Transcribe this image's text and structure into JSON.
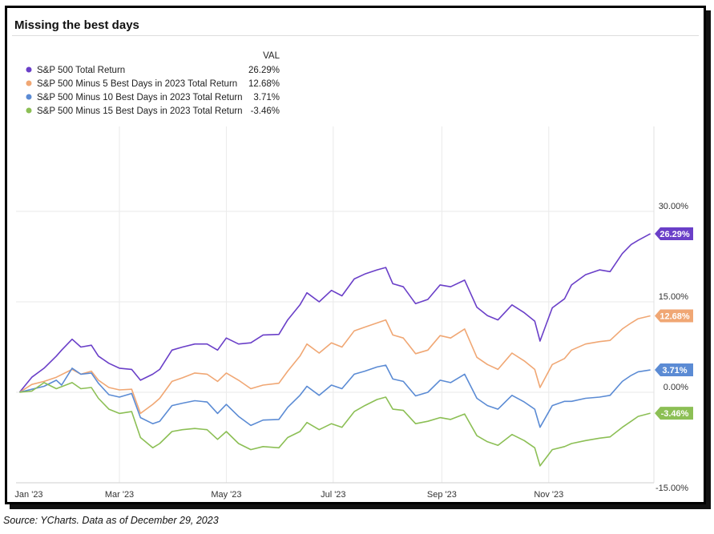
{
  "chart_data": {
    "type": "line",
    "title": "Missing the best days",
    "legend_header": "VAL",
    "legend_position": "top-left",
    "grid": true,
    "x_range": [
      "2023-01-01",
      "2023-12-31"
    ],
    "x_ticks": [
      {
        "date": "2023-01-01",
        "label": "Jan '23"
      },
      {
        "date": "2023-03-01",
        "label": "Mar '23"
      },
      {
        "date": "2023-05-01",
        "label": "May '23"
      },
      {
        "date": "2023-07-01",
        "label": "Jul '23"
      },
      {
        "date": "2023-09-01",
        "label": "Sep '23"
      },
      {
        "date": "2023-11-01",
        "label": "Nov '23"
      }
    ],
    "ylim": [
      -15,
      30
    ],
    "y_ticks": [
      {
        "value": 30,
        "label": "30.00%"
      },
      {
        "value": 15,
        "label": "15.00%"
      },
      {
        "value": 0,
        "label": "0.00%"
      },
      {
        "value": -15,
        "label": "-15.00%"
      }
    ],
    "series": [
      {
        "name": "S&P 500 Total Return",
        "value_label": "26.29%",
        "color": "#6a3fc8",
        "points": [
          [
            "2023-01-03",
            0
          ],
          [
            "2023-01-10",
            2.5
          ],
          [
            "2023-01-17",
            4.0
          ],
          [
            "2023-01-24",
            6.0
          ],
          [
            "2023-01-27",
            7.0
          ],
          [
            "2023-02-02",
            8.8
          ],
          [
            "2023-02-07",
            7.5
          ],
          [
            "2023-02-13",
            7.8
          ],
          [
            "2023-02-17",
            6.0
          ],
          [
            "2023-02-23",
            4.8
          ],
          [
            "2023-03-01",
            4.0
          ],
          [
            "2023-03-08",
            3.8
          ],
          [
            "2023-03-13",
            2.0
          ],
          [
            "2023-03-20",
            3.0
          ],
          [
            "2023-03-24",
            3.8
          ],
          [
            "2023-03-31",
            7.0
          ],
          [
            "2023-04-06",
            7.5
          ],
          [
            "2023-04-13",
            8.0
          ],
          [
            "2023-04-20",
            8.0
          ],
          [
            "2023-04-26",
            7.0
          ],
          [
            "2023-05-01",
            9.0
          ],
          [
            "2023-05-08",
            8.0
          ],
          [
            "2023-05-15",
            8.2
          ],
          [
            "2023-05-22",
            9.5
          ],
          [
            "2023-05-31",
            9.6
          ],
          [
            "2023-06-05",
            12.0
          ],
          [
            "2023-06-12",
            14.5
          ],
          [
            "2023-06-16",
            16.5
          ],
          [
            "2023-06-23",
            15.0
          ],
          [
            "2023-06-30",
            16.9
          ],
          [
            "2023-07-06",
            16.0
          ],
          [
            "2023-07-13",
            18.8
          ],
          [
            "2023-07-19",
            19.6
          ],
          [
            "2023-07-26",
            20.3
          ],
          [
            "2023-07-31",
            20.7
          ],
          [
            "2023-08-04",
            18.0
          ],
          [
            "2023-08-10",
            17.5
          ],
          [
            "2023-08-17",
            14.7
          ],
          [
            "2023-08-24",
            15.4
          ],
          [
            "2023-08-31",
            17.8
          ],
          [
            "2023-09-06",
            17.5
          ],
          [
            "2023-09-14",
            18.6
          ],
          [
            "2023-09-21",
            14.1
          ],
          [
            "2023-09-27",
            12.7
          ],
          [
            "2023-10-03",
            12.0
          ],
          [
            "2023-10-11",
            14.5
          ],
          [
            "2023-10-18",
            13.2
          ],
          [
            "2023-10-24",
            11.8
          ],
          [
            "2023-10-27",
            8.5
          ],
          [
            "2023-11-03",
            14.0
          ],
          [
            "2023-11-10",
            15.5
          ],
          [
            "2023-11-14",
            17.8
          ],
          [
            "2023-11-22",
            19.5
          ],
          [
            "2023-11-30",
            20.3
          ],
          [
            "2023-12-06",
            20.0
          ],
          [
            "2023-12-13",
            23.0
          ],
          [
            "2023-12-18",
            24.5
          ],
          [
            "2023-12-22",
            25.2
          ],
          [
            "2023-12-29",
            26.29
          ]
        ]
      },
      {
        "name": "S&P 500 Minus 5 Best Days in 2023 Total Return",
        "value_label": "12.68%",
        "color": "#f0a774",
        "points": [
          [
            "2023-01-03",
            0
          ],
          [
            "2023-01-10",
            1.3
          ],
          [
            "2023-01-17",
            1.8
          ],
          [
            "2023-01-24",
            2.5
          ],
          [
            "2023-02-02",
            3.8
          ],
          [
            "2023-02-07",
            3.0
          ],
          [
            "2023-02-13",
            3.5
          ],
          [
            "2023-02-17",
            2.0
          ],
          [
            "2023-02-23",
            0.8
          ],
          [
            "2023-03-01",
            0.4
          ],
          [
            "2023-03-08",
            0.5
          ],
          [
            "2023-03-13",
            -3.5
          ],
          [
            "2023-03-20",
            -2.0
          ],
          [
            "2023-03-24",
            -1.0
          ],
          [
            "2023-03-31",
            1.8
          ],
          [
            "2023-04-06",
            2.4
          ],
          [
            "2023-04-13",
            3.2
          ],
          [
            "2023-04-20",
            3.0
          ],
          [
            "2023-04-26",
            1.8
          ],
          [
            "2023-05-01",
            3.2
          ],
          [
            "2023-05-08",
            2.0
          ],
          [
            "2023-05-15",
            0.6
          ],
          [
            "2023-05-22",
            1.2
          ],
          [
            "2023-05-31",
            1.5
          ],
          [
            "2023-06-05",
            3.5
          ],
          [
            "2023-06-12",
            6.0
          ],
          [
            "2023-06-16",
            8.0
          ],
          [
            "2023-06-23",
            6.5
          ],
          [
            "2023-06-30",
            8.2
          ],
          [
            "2023-07-06",
            7.5
          ],
          [
            "2023-07-13",
            10.2
          ],
          [
            "2023-07-19",
            10.8
          ],
          [
            "2023-07-26",
            11.5
          ],
          [
            "2023-07-31",
            12.0
          ],
          [
            "2023-08-04",
            9.5
          ],
          [
            "2023-08-10",
            9.0
          ],
          [
            "2023-08-17",
            6.4
          ],
          [
            "2023-08-24",
            7.0
          ],
          [
            "2023-08-31",
            9.4
          ],
          [
            "2023-09-06",
            9.0
          ],
          [
            "2023-09-14",
            10.5
          ],
          [
            "2023-09-21",
            5.8
          ],
          [
            "2023-09-27",
            4.6
          ],
          [
            "2023-10-03",
            3.8
          ],
          [
            "2023-10-11",
            6.5
          ],
          [
            "2023-10-18",
            5.2
          ],
          [
            "2023-10-24",
            3.8
          ],
          [
            "2023-10-27",
            0.8
          ],
          [
            "2023-11-03",
            4.6
          ],
          [
            "2023-11-10",
            5.6
          ],
          [
            "2023-11-14",
            7.0
          ],
          [
            "2023-11-22",
            8.0
          ],
          [
            "2023-11-30",
            8.4
          ],
          [
            "2023-12-06",
            8.6
          ],
          [
            "2023-12-13",
            10.5
          ],
          [
            "2023-12-18",
            11.5
          ],
          [
            "2023-12-22",
            12.2
          ],
          [
            "2023-12-29",
            12.68
          ]
        ]
      },
      {
        "name": "S&P 500 Minus 10 Best Days in 2023 Total Return",
        "value_label": "3.71%",
        "color": "#5b8bd4",
        "points": [
          [
            "2023-01-03",
            0
          ],
          [
            "2023-01-10",
            0.5
          ],
          [
            "2023-01-17",
            1.0
          ],
          [
            "2023-01-24",
            2.0
          ],
          [
            "2023-01-27",
            1.2
          ],
          [
            "2023-02-02",
            4.0
          ],
          [
            "2023-02-07",
            3.0
          ],
          [
            "2023-02-13",
            3.2
          ],
          [
            "2023-02-17",
            1.5
          ],
          [
            "2023-02-23",
            -0.4
          ],
          [
            "2023-03-01",
            -0.8
          ],
          [
            "2023-03-08",
            -0.2
          ],
          [
            "2023-03-13",
            -4.2
          ],
          [
            "2023-03-20",
            -5.2
          ],
          [
            "2023-03-24",
            -4.8
          ],
          [
            "2023-03-31",
            -2.2
          ],
          [
            "2023-04-06",
            -1.8
          ],
          [
            "2023-04-13",
            -1.4
          ],
          [
            "2023-04-20",
            -1.6
          ],
          [
            "2023-04-26",
            -3.5
          ],
          [
            "2023-05-01",
            -2.0
          ],
          [
            "2023-05-08",
            -4.0
          ],
          [
            "2023-05-15",
            -5.5
          ],
          [
            "2023-05-22",
            -4.6
          ],
          [
            "2023-05-31",
            -4.5
          ],
          [
            "2023-06-05",
            -2.5
          ],
          [
            "2023-06-12",
            -0.5
          ],
          [
            "2023-06-16",
            1.0
          ],
          [
            "2023-06-23",
            -0.5
          ],
          [
            "2023-06-30",
            1.2
          ],
          [
            "2023-07-06",
            0.6
          ],
          [
            "2023-07-13",
            3.0
          ],
          [
            "2023-07-19",
            3.5
          ],
          [
            "2023-07-26",
            4.2
          ],
          [
            "2023-07-31",
            4.5
          ],
          [
            "2023-08-04",
            2.2
          ],
          [
            "2023-08-10",
            1.8
          ],
          [
            "2023-08-17",
            -0.6
          ],
          [
            "2023-08-24",
            0.0
          ],
          [
            "2023-08-31",
            2.0
          ],
          [
            "2023-09-06",
            1.6
          ],
          [
            "2023-09-14",
            3.0
          ],
          [
            "2023-09-21",
            -1.0
          ],
          [
            "2023-09-27",
            -2.2
          ],
          [
            "2023-10-03",
            -2.8
          ],
          [
            "2023-10-11",
            -0.5
          ],
          [
            "2023-10-18",
            -1.6
          ],
          [
            "2023-10-24",
            -2.8
          ],
          [
            "2023-10-27",
            -5.8
          ],
          [
            "2023-11-03",
            -2.2
          ],
          [
            "2023-11-10",
            -1.5
          ],
          [
            "2023-11-14",
            -1.5
          ],
          [
            "2023-11-22",
            -1.0
          ],
          [
            "2023-11-30",
            -0.8
          ],
          [
            "2023-12-06",
            -0.5
          ],
          [
            "2023-12-13",
            1.8
          ],
          [
            "2023-12-18",
            2.8
          ],
          [
            "2023-12-22",
            3.4
          ],
          [
            "2023-12-29",
            3.71
          ]
        ]
      },
      {
        "name": "S&P 500 Minus 15 Best Days in 2023 Total Return",
        "value_label": "-3.46%",
        "color": "#8cbf55",
        "points": [
          [
            "2023-01-03",
            0
          ],
          [
            "2023-01-10",
            0.2
          ],
          [
            "2023-01-17",
            1.6
          ],
          [
            "2023-01-24",
            0.6
          ],
          [
            "2023-02-02",
            1.6
          ],
          [
            "2023-02-07",
            0.6
          ],
          [
            "2023-02-13",
            0.8
          ],
          [
            "2023-02-17",
            -1.0
          ],
          [
            "2023-02-23",
            -2.8
          ],
          [
            "2023-03-01",
            -3.5
          ],
          [
            "2023-03-08",
            -3.2
          ],
          [
            "2023-03-13",
            -7.5
          ],
          [
            "2023-03-20",
            -9.2
          ],
          [
            "2023-03-24",
            -8.5
          ],
          [
            "2023-03-31",
            -6.5
          ],
          [
            "2023-04-06",
            -6.2
          ],
          [
            "2023-04-13",
            -6.0
          ],
          [
            "2023-04-20",
            -6.2
          ],
          [
            "2023-04-26",
            -7.8
          ],
          [
            "2023-05-01",
            -6.5
          ],
          [
            "2023-05-08",
            -8.5
          ],
          [
            "2023-05-15",
            -9.5
          ],
          [
            "2023-05-22",
            -9.0
          ],
          [
            "2023-05-31",
            -9.2
          ],
          [
            "2023-06-05",
            -7.5
          ],
          [
            "2023-06-12",
            -6.5
          ],
          [
            "2023-06-16",
            -5.0
          ],
          [
            "2023-06-23",
            -6.2
          ],
          [
            "2023-06-30",
            -5.2
          ],
          [
            "2023-07-06",
            -5.8
          ],
          [
            "2023-07-13",
            -3.2
          ],
          [
            "2023-07-19",
            -2.2
          ],
          [
            "2023-07-26",
            -1.2
          ],
          [
            "2023-07-31",
            -0.8
          ],
          [
            "2023-08-04",
            -2.8
          ],
          [
            "2023-08-10",
            -3.0
          ],
          [
            "2023-08-17",
            -5.2
          ],
          [
            "2023-08-24",
            -4.8
          ],
          [
            "2023-08-31",
            -4.2
          ],
          [
            "2023-09-06",
            -4.5
          ],
          [
            "2023-09-14",
            -3.6
          ],
          [
            "2023-09-21",
            -7.2
          ],
          [
            "2023-09-27",
            -8.2
          ],
          [
            "2023-10-03",
            -8.8
          ],
          [
            "2023-10-11",
            -7.0
          ],
          [
            "2023-10-18",
            -8.0
          ],
          [
            "2023-10-24",
            -9.2
          ],
          [
            "2023-10-27",
            -12.2
          ],
          [
            "2023-11-03",
            -9.5
          ],
          [
            "2023-11-10",
            -9.0
          ],
          [
            "2023-11-14",
            -8.5
          ],
          [
            "2023-11-22",
            -8.0
          ],
          [
            "2023-11-30",
            -7.6
          ],
          [
            "2023-12-06",
            -7.4
          ],
          [
            "2023-12-13",
            -5.8
          ],
          [
            "2023-12-18",
            -4.8
          ],
          [
            "2023-12-22",
            -4.0
          ],
          [
            "2023-12-29",
            -3.46
          ]
        ]
      }
    ]
  },
  "footer": {
    "source": "Source: YCharts.  Data as of December 29, 2023"
  }
}
